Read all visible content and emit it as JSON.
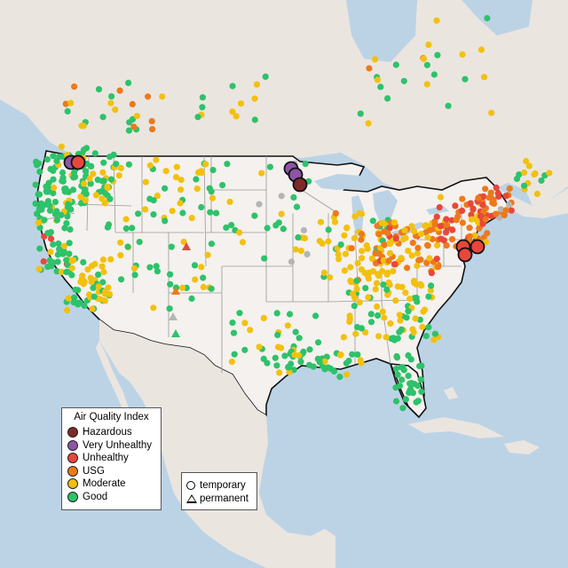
{
  "legend": {
    "title": "Air Quality Index",
    "categories": [
      {
        "label": "Hazardous",
        "color": "#7e2a28"
      },
      {
        "label": "Very Unhealthy",
        "color": "#8e55a6"
      },
      {
        "label": "Unhealthy",
        "color": "#e8473b"
      },
      {
        "label": "USG",
        "color": "#ec7a1c"
      },
      {
        "label": "Moderate",
        "color": "#f2c10f"
      },
      {
        "label": "Good",
        "color": "#2dc26b"
      }
    ],
    "no_data_color": "#b5b5b5"
  },
  "type_legend": {
    "temporary": "temporary",
    "permanent": "permanent"
  },
  "colors": {
    "water": "#bcd3e6",
    "land": "#ebe5e0",
    "us_land": "#f5f1ee",
    "border": "#111111",
    "state_lines": "#9a9a9a"
  },
  "large_markers": [
    {
      "cat": "Very Unhealthy",
      "region": "northern Idaho"
    },
    {
      "cat": "Unhealthy",
      "region": "northern Idaho"
    },
    {
      "cat": "Very Unhealthy",
      "region": "northwest Minnesota"
    },
    {
      "cat": "Very Unhealthy",
      "region": "northwest Minnesota"
    },
    {
      "cat": "Hazardous",
      "region": "northeast Minnesota"
    },
    {
      "cat": "Unhealthy",
      "region": "Maryland"
    },
    {
      "cat": "Unhealthy",
      "region": "Delaware"
    },
    {
      "cat": "Unhealthy",
      "region": "New Jersey"
    }
  ]
}
